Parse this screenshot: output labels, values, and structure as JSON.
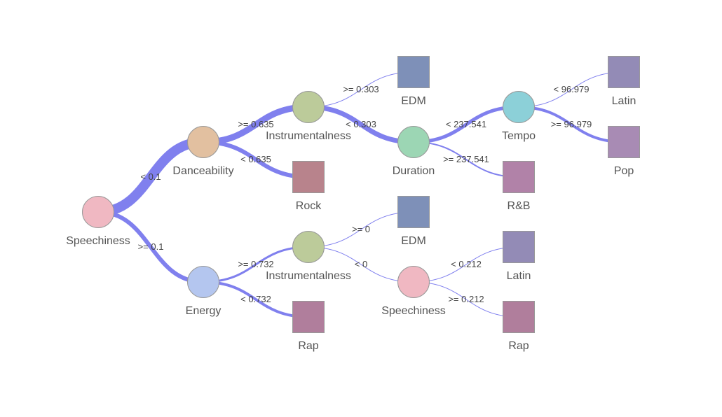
{
  "colors": {
    "edge": "#8080ee",
    "node_stroke": "#999999"
  },
  "tree": {
    "nodes": [
      {
        "id": "n0",
        "kind": "split",
        "label": "Speechiness",
        "color": "#f0b8c2"
      },
      {
        "id": "n1",
        "kind": "split",
        "label": "Danceability",
        "color": "#e2c0a0"
      },
      {
        "id": "n2",
        "kind": "split",
        "label": "Energy",
        "color": "#b4c6ef"
      },
      {
        "id": "n3",
        "kind": "split",
        "label": "Instrumentalness",
        "color": "#bccb9a"
      },
      {
        "id": "n4",
        "kind": "leaf",
        "label": "Rock",
        "color": "#b8838c"
      },
      {
        "id": "n5",
        "kind": "leaf",
        "label": "EDM",
        "color": "#7e90b8"
      },
      {
        "id": "n6",
        "kind": "split",
        "label": "Duration",
        "color": "#9cd6b4"
      },
      {
        "id": "n7",
        "kind": "split",
        "label": "Tempo",
        "color": "#8cd0d8"
      },
      {
        "id": "n8",
        "kind": "leaf",
        "label": "R&B",
        "color": "#b182a8"
      },
      {
        "id": "n9",
        "kind": "leaf",
        "label": "Latin",
        "color": "#938bb6"
      },
      {
        "id": "n10",
        "kind": "leaf",
        "label": "Pop",
        "color": "#a88bb4"
      },
      {
        "id": "n11",
        "kind": "split",
        "label": "Instrumentalness",
        "color": "#bccb9a"
      },
      {
        "id": "n12",
        "kind": "leaf",
        "label": "Rap",
        "color": "#b07e9c"
      },
      {
        "id": "n13",
        "kind": "leaf",
        "label": "EDM",
        "color": "#7e90b8"
      },
      {
        "id": "n14",
        "kind": "split",
        "label": "Speechiness",
        "color": "#f0b8c2"
      },
      {
        "id": "n15",
        "kind": "leaf",
        "label": "Latin",
        "color": "#938bb6"
      },
      {
        "id": "n16",
        "kind": "leaf",
        "label": "Rap",
        "color": "#b07e9c"
      }
    ],
    "edges": [
      {
        "from": "n0",
        "to": "n1",
        "label": "< 0.1",
        "weight": 14
      },
      {
        "from": "n0",
        "to": "n2",
        "label": ">= 0.1",
        "weight": 6
      },
      {
        "from": "n1",
        "to": "n3",
        "label": ">= 0.635",
        "weight": 9
      },
      {
        "from": "n1",
        "to": "n4",
        "label": "< 0.635",
        "weight": 6
      },
      {
        "from": "n3",
        "to": "n5",
        "label": ">= 0.303",
        "weight": 1
      },
      {
        "from": "n3",
        "to": "n6",
        "label": "< 0.303",
        "weight": 7
      },
      {
        "from": "n6",
        "to": "n7",
        "label": "< 237.541",
        "weight": 5
      },
      {
        "from": "n6",
        "to": "n8",
        "label": ">= 237.541",
        "weight": 2
      },
      {
        "from": "n7",
        "to": "n9",
        "label": "< 96.979",
        "weight": 1
      },
      {
        "from": "n7",
        "to": "n10",
        "label": ">= 96.979",
        "weight": 4
      },
      {
        "from": "n2",
        "to": "n11",
        "label": ">= 0.732",
        "weight": 3
      },
      {
        "from": "n2",
        "to": "n12",
        "label": "< 0.732",
        "weight": 4
      },
      {
        "from": "n11",
        "to": "n13",
        "label": ">= 0",
        "weight": 1
      },
      {
        "from": "n11",
        "to": "n14",
        "label": "< 0",
        "weight": 1
      },
      {
        "from": "n14",
        "to": "n15",
        "label": "< 0.212",
        "weight": 1
      },
      {
        "from": "n14",
        "to": "n16",
        "label": ">= 0.212",
        "weight": 1
      }
    ]
  }
}
